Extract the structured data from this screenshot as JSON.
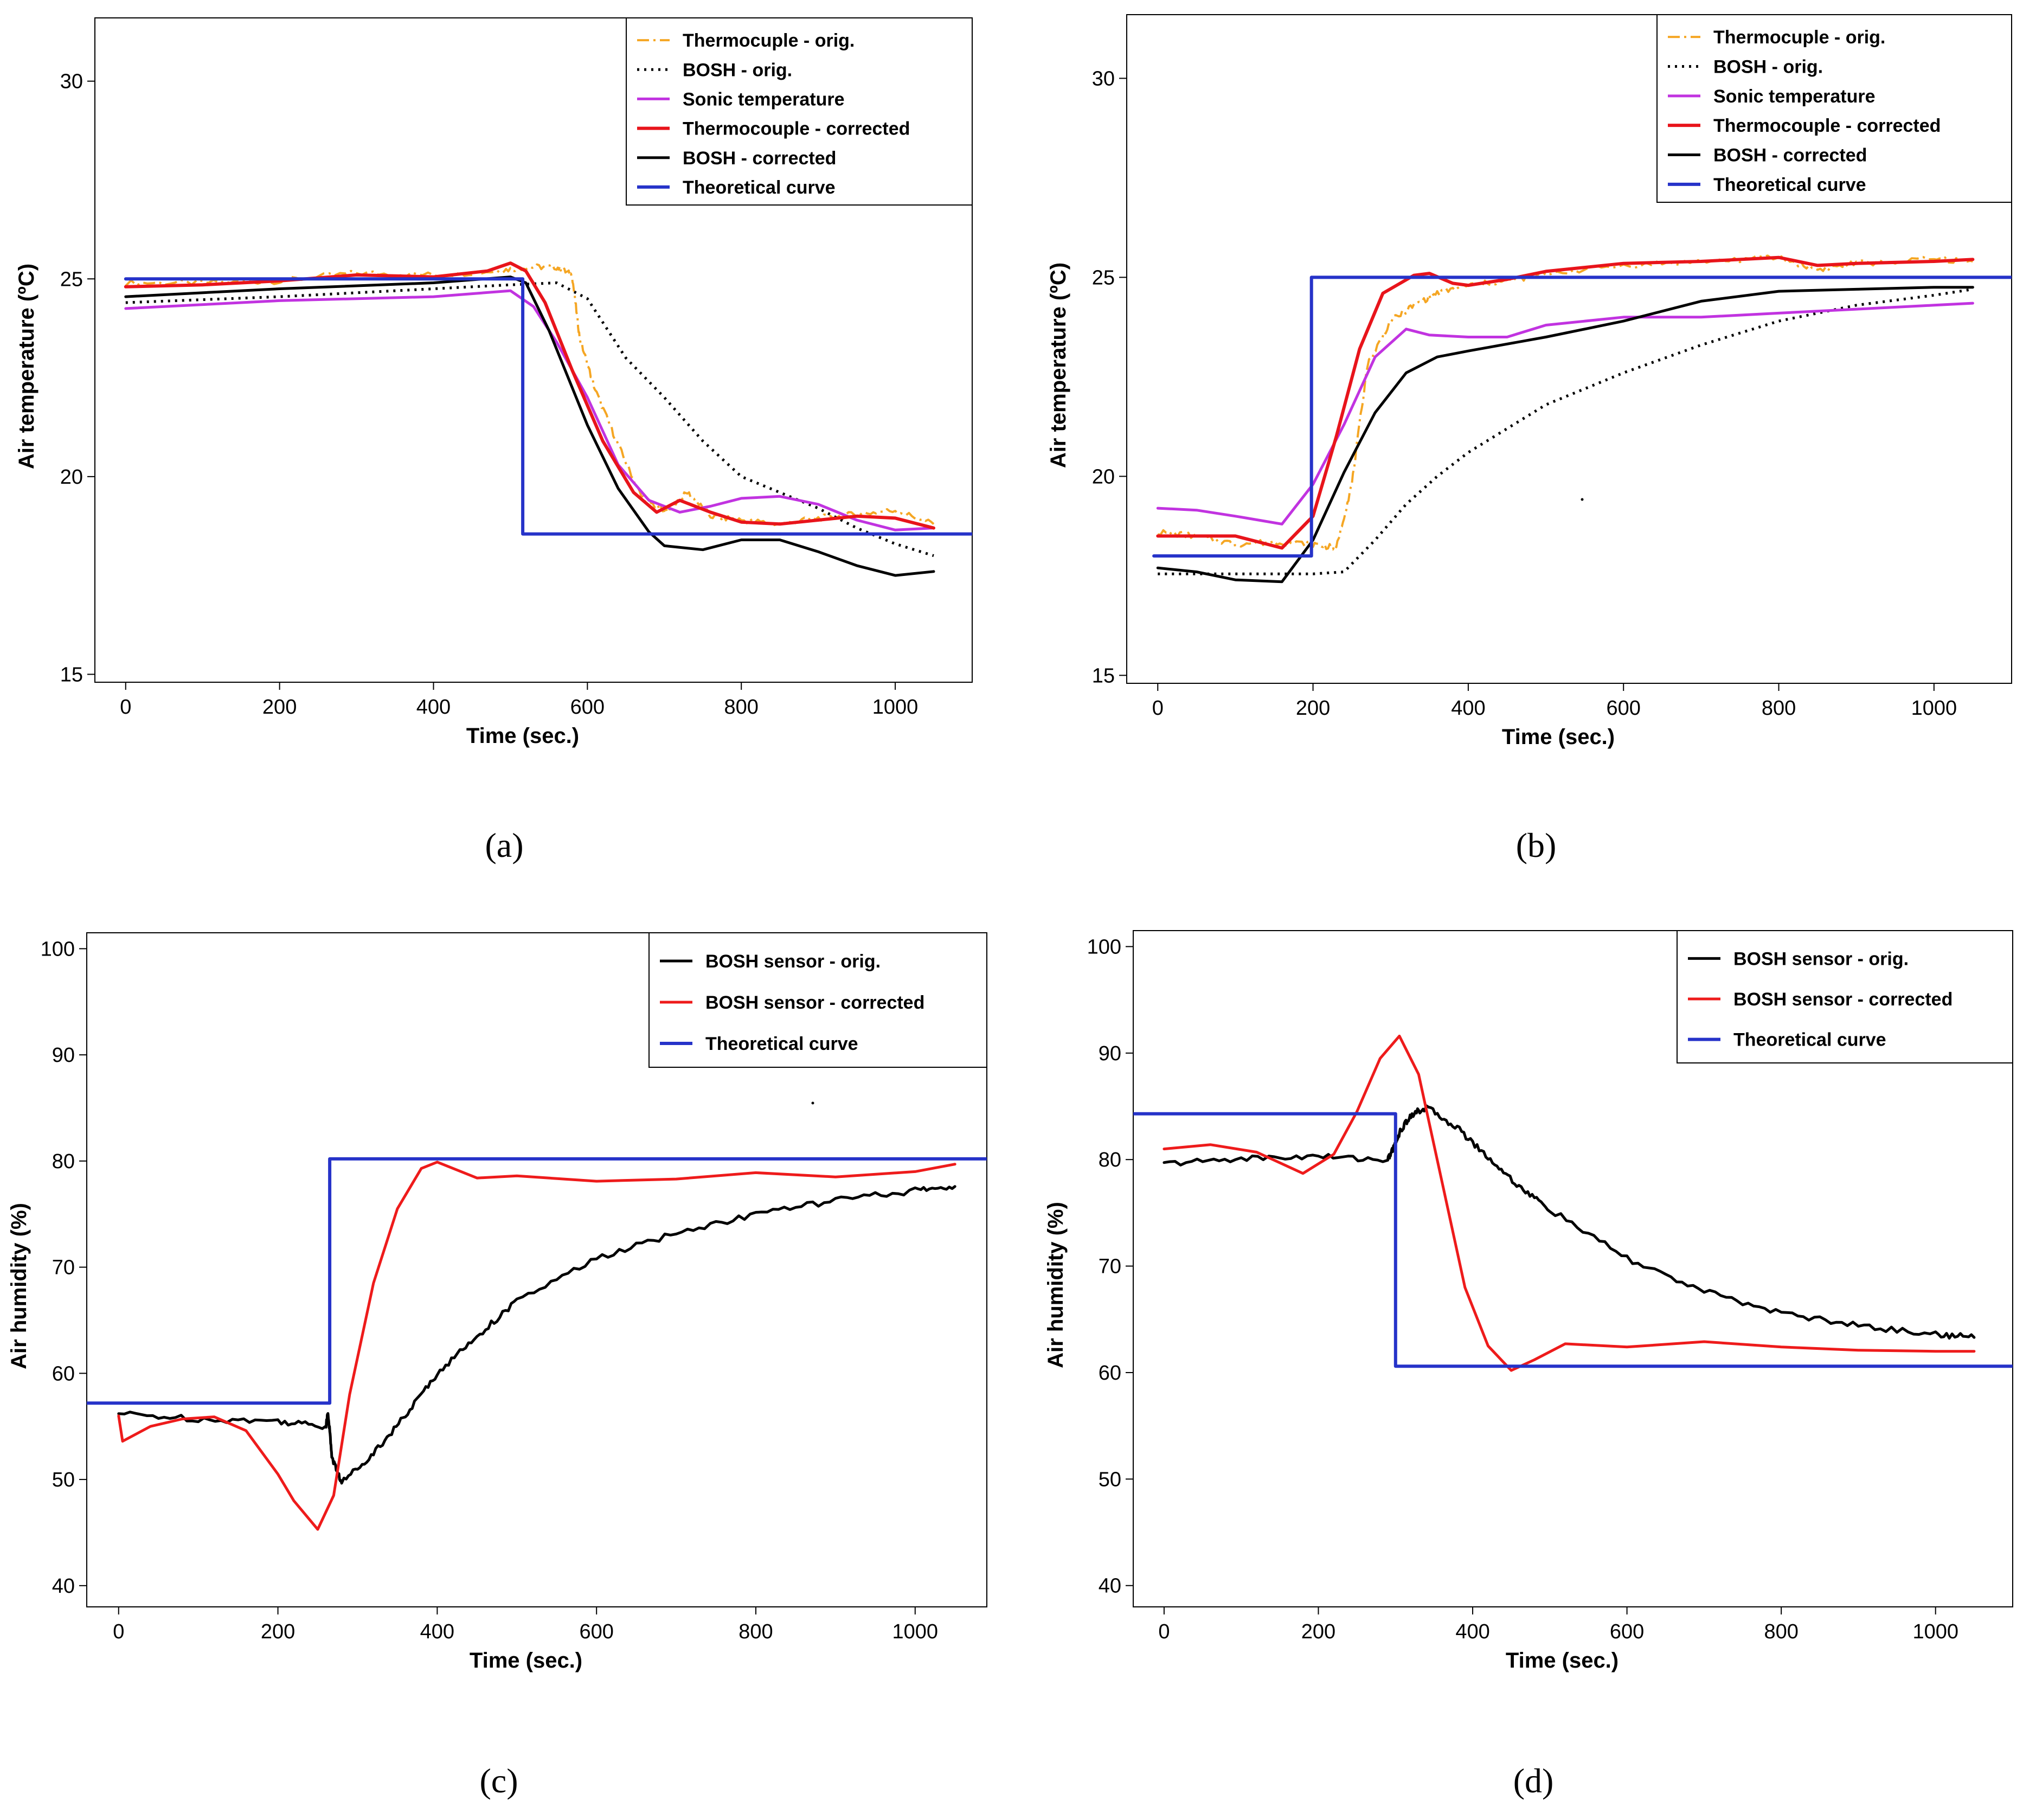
{
  "colors": {
    "thermo_orig": "#f5a623",
    "bosh_orig": "#000000",
    "sonic": "#c133e0",
    "thermo_corr": "#e8141b",
    "bosh_corr": "#000000",
    "theory": "#2633c9",
    "humid_orig": "#000000",
    "humid_corr": "#ee1b1b"
  },
  "chart_data": [
    {
      "id": "a",
      "type": "line",
      "caption": "(a)",
      "xlabel": "Time (sec.)",
      "ylabel": "Air temperature (ºC)",
      "xlim": [
        -40,
        1100
      ],
      "ylim": [
        14.8,
        31.6
      ],
      "xticks": [
        0,
        200,
        400,
        600,
        800,
        1000
      ],
      "yticks": [
        15,
        20,
        25,
        30
      ],
      "legend_position": "top-right",
      "series": [
        {
          "key": "thermo_orig",
          "name": "Thermocuple - orig.",
          "style": "dashdot",
          "noisy": true,
          "x": [
            0,
            100,
            200,
            300,
            400,
            480,
            520,
            560,
            580,
            590,
            610,
            640,
            670,
            700,
            730,
            760,
            800,
            850,
            900,
            950,
            1000,
            1050
          ],
          "y": [
            24.9,
            24.9,
            24.95,
            25.15,
            25.1,
            25.2,
            25.3,
            25.3,
            25.1,
            23.5,
            22.2,
            20.8,
            19.5,
            19.1,
            19.6,
            19.0,
            18.9,
            18.8,
            18.95,
            19.05,
            19.15,
            18.8
          ]
        },
        {
          "key": "bosh_orig",
          "name": "BOSH - orig.",
          "style": "dotted",
          "x": [
            0,
            200,
            400,
            500,
            560,
            600,
            650,
            700,
            750,
            800,
            850,
            900,
            950,
            1000,
            1050
          ],
          "y": [
            24.4,
            24.55,
            24.75,
            24.85,
            24.9,
            24.5,
            23.0,
            22.0,
            20.9,
            20.0,
            19.6,
            19.2,
            18.7,
            18.3,
            18.0
          ]
        },
        {
          "key": "sonic",
          "name": "Sonic temperature",
          "style": "solid",
          "x": [
            0,
            200,
            400,
            500,
            530,
            560,
            600,
            640,
            680,
            720,
            760,
            800,
            850,
            900,
            950,
            1000,
            1050
          ],
          "y": [
            24.25,
            24.45,
            24.55,
            24.7,
            24.3,
            23.4,
            22.0,
            20.3,
            19.4,
            19.1,
            19.25,
            19.45,
            19.5,
            19.3,
            18.9,
            18.65,
            18.7
          ]
        },
        {
          "key": "thermo_corr",
          "name": "Thermocouple - corrected",
          "style": "solid",
          "x": [
            0,
            100,
            200,
            300,
            400,
            470,
            500,
            520,
            545,
            580,
            620,
            660,
            690,
            720,
            760,
            800,
            850,
            900,
            950,
            1000,
            1050
          ],
          "y": [
            24.8,
            24.85,
            24.95,
            25.1,
            25.05,
            25.2,
            25.4,
            25.2,
            24.4,
            22.7,
            20.9,
            19.6,
            19.1,
            19.4,
            19.1,
            18.85,
            18.8,
            18.9,
            19.0,
            18.95,
            18.7
          ]
        },
        {
          "key": "bosh_corr",
          "name": "BOSH - corrected",
          "style": "solid",
          "x": [
            0,
            200,
            400,
            500,
            520,
            550,
            600,
            640,
            680,
            700,
            750,
            800,
            850,
            900,
            950,
            1000,
            1050
          ],
          "y": [
            24.55,
            24.75,
            24.9,
            25.05,
            24.9,
            23.7,
            21.3,
            19.7,
            18.6,
            18.25,
            18.15,
            18.4,
            18.4,
            18.1,
            17.75,
            17.5,
            17.6
          ]
        },
        {
          "key": "theory",
          "name": "Theoretical curve",
          "style": "solid",
          "x": [
            0,
            516,
            516,
            1100
          ],
          "y": [
            25.0,
            25.0,
            18.55,
            18.55
          ]
        }
      ]
    },
    {
      "id": "b",
      "type": "line",
      "caption": "(b)",
      "xlabel": "Time (sec.)",
      "ylabel": "Air temperature (ºC)",
      "xlim": [
        -40,
        1100
      ],
      "ylim": [
        14.8,
        31.6
      ],
      "xticks": [
        0,
        200,
        400,
        600,
        800,
        1000
      ],
      "yticks": [
        15,
        20,
        25,
        30
      ],
      "legend_position": "top-right",
      "series": [
        {
          "key": "thermo_orig",
          "name": "Thermocuple - orig.",
          "style": "dashdot",
          "noisy": true,
          "x": [
            0,
            50,
            100,
            150,
            200,
            230,
            250,
            270,
            300,
            330,
            360,
            400,
            450,
            500,
            600,
            700,
            800,
            850,
            900,
            1000,
            1050
          ],
          "y": [
            18.6,
            18.5,
            18.3,
            18.35,
            18.3,
            18.2,
            19.8,
            22.8,
            23.9,
            24.3,
            24.6,
            24.8,
            24.9,
            25.1,
            25.3,
            25.4,
            25.5,
            25.2,
            25.35,
            25.45,
            25.4
          ]
        },
        {
          "key": "bosh_orig",
          "name": "BOSH - orig.",
          "style": "dotted",
          "x": [
            0,
            100,
            200,
            240,
            280,
            320,
            360,
            400,
            450,
            500,
            600,
            700,
            800,
            900,
            1000,
            1050
          ],
          "y": [
            17.55,
            17.55,
            17.55,
            17.6,
            18.4,
            19.3,
            20.0,
            20.6,
            21.2,
            21.8,
            22.6,
            23.3,
            23.9,
            24.3,
            24.55,
            24.7
          ]
        },
        {
          "key": "sonic",
          "name": "Sonic temperature",
          "style": "solid",
          "x": [
            0,
            50,
            100,
            160,
            200,
            240,
            280,
            320,
            350,
            400,
            450,
            500,
            600,
            700,
            800,
            900,
            1000,
            1050
          ],
          "y": [
            19.2,
            19.15,
            19.0,
            18.8,
            19.8,
            21.3,
            23.0,
            23.7,
            23.55,
            23.5,
            23.5,
            23.8,
            24.0,
            24.0,
            24.1,
            24.2,
            24.3,
            24.35
          ]
        },
        {
          "key": "thermo_corr",
          "name": "Thermocouple - corrected",
          "style": "solid",
          "x": [
            0,
            100,
            160,
            200,
            230,
            260,
            290,
            330,
            350,
            380,
            400,
            450,
            500,
            600,
            700,
            800,
            850,
            900,
            1000,
            1050
          ],
          "y": [
            18.5,
            18.5,
            18.2,
            19.0,
            21.0,
            23.2,
            24.6,
            25.05,
            25.1,
            24.85,
            24.8,
            24.95,
            25.15,
            25.35,
            25.4,
            25.5,
            25.3,
            25.35,
            25.4,
            25.45
          ]
        },
        {
          "key": "bosh_corr",
          "name": "BOSH - corrected",
          "style": "solid",
          "x": [
            0,
            50,
            100,
            160,
            200,
            240,
            280,
            320,
            360,
            400,
            500,
            600,
            700,
            800,
            900,
            1000,
            1050
          ],
          "y": [
            17.7,
            17.6,
            17.4,
            17.35,
            18.4,
            20.1,
            21.6,
            22.6,
            23.0,
            23.15,
            23.5,
            23.9,
            24.4,
            24.65,
            24.7,
            24.75,
            24.75
          ]
        },
        {
          "key": "theory",
          "name": "Theoretical curve",
          "style": "solid",
          "x": [
            -5,
            198,
            198,
            1100
          ],
          "y": [
            18.0,
            18.0,
            25.0,
            25.0
          ]
        }
      ]
    },
    {
      "id": "c",
      "type": "line",
      "caption": "(c)",
      "xlabel": "Time (sec.)",
      "ylabel": "Air humidity (%)",
      "xlim": [
        -40,
        1090
      ],
      "ylim": [
        38,
        101.5
      ],
      "xticks": [
        0,
        200,
        400,
        600,
        800,
        1000
      ],
      "yticks": [
        40,
        50,
        60,
        70,
        80,
        90,
        100
      ],
      "legend_position": "top-right",
      "series": [
        {
          "key": "humid_orig",
          "name": "BOSH sensor - orig.",
          "style": "solid",
          "noisy": true,
          "x": [
            0,
            100,
            200,
            260,
            263,
            268,
            280,
            320,
            360,
            400,
            450,
            500,
            600,
            700,
            800,
            900,
            1000,
            1050
          ],
          "y": [
            56.2,
            55.7,
            55.5,
            55.0,
            56.3,
            52.0,
            49.7,
            52.5,
            56.0,
            60.0,
            63.5,
            66.8,
            70.8,
            73.2,
            75.0,
            76.3,
            77.2,
            77.6
          ]
        },
        {
          "key": "humid_corr",
          "name": "BOSH sensor - corrected",
          "style": "solid",
          "x": [
            0,
            5,
            40,
            80,
            120,
            160,
            200,
            220,
            250,
            270,
            290,
            320,
            350,
            380,
            400,
            450,
            500,
            600,
            700,
            800,
            900,
            1000,
            1050
          ],
          "y": [
            56.0,
            53.6,
            55.0,
            55.7,
            55.9,
            54.6,
            50.5,
            48.0,
            45.3,
            48.5,
            58.0,
            68.5,
            75.5,
            79.3,
            79.9,
            78.4,
            78.6,
            78.1,
            78.3,
            78.9,
            78.5,
            79.0,
            79.7
          ]
        },
        {
          "key": "theory",
          "name": "Theoretical curve",
          "style": "solid",
          "x": [
            -40,
            265,
            265,
            1090
          ],
          "y": [
            57.2,
            57.2,
            80.2,
            80.2
          ]
        }
      ]
    },
    {
      "id": "d",
      "type": "line",
      "caption": "(d)",
      "xlabel": "Time (sec.)",
      "ylabel": "Air humidity (%)",
      "xlim": [
        -40,
        1100
      ],
      "ylim": [
        38,
        101.5
      ],
      "xticks": [
        0,
        200,
        400,
        600,
        800,
        1000
      ],
      "yticks": [
        40,
        50,
        60,
        70,
        80,
        90,
        100
      ],
      "legend_position": "top-right",
      "series": [
        {
          "key": "humid_orig",
          "name": "BOSH sensor - orig.",
          "style": "solid",
          "noisy": true,
          "x": [
            0,
            100,
            200,
            290,
            298,
            305,
            320,
            340,
            380,
            420,
            460,
            500,
            600,
            700,
            800,
            900,
            1000,
            1050
          ],
          "y": [
            79.6,
            80.1,
            80.3,
            80.0,
            81.2,
            82.5,
            84.2,
            84.9,
            83.0,
            80.2,
            77.5,
            75.3,
            70.7,
            67.6,
            65.6,
            64.4,
            63.6,
            63.3
          ]
        },
        {
          "key": "humid_corr",
          "name": "BOSH sensor - corrected",
          "style": "solid",
          "x": [
            0,
            60,
            120,
            180,
            220,
            250,
            280,
            305,
            330,
            360,
            390,
            420,
            450,
            480,
            520,
            600,
            700,
            800,
            900,
            1000,
            1050
          ],
          "y": [
            81.0,
            81.4,
            80.7,
            78.7,
            80.5,
            84.5,
            89.5,
            91.6,
            88.0,
            78.0,
            68.0,
            62.5,
            60.2,
            61.2,
            62.7,
            62.4,
            62.9,
            62.4,
            62.1,
            62.0,
            62.0
          ]
        },
        {
          "key": "theory",
          "name": "Theoretical curve",
          "style": "solid",
          "x": [
            -40,
            300,
            300,
            1100
          ],
          "y": [
            84.3,
            84.3,
            60.6,
            60.6
          ]
        }
      ]
    }
  ]
}
